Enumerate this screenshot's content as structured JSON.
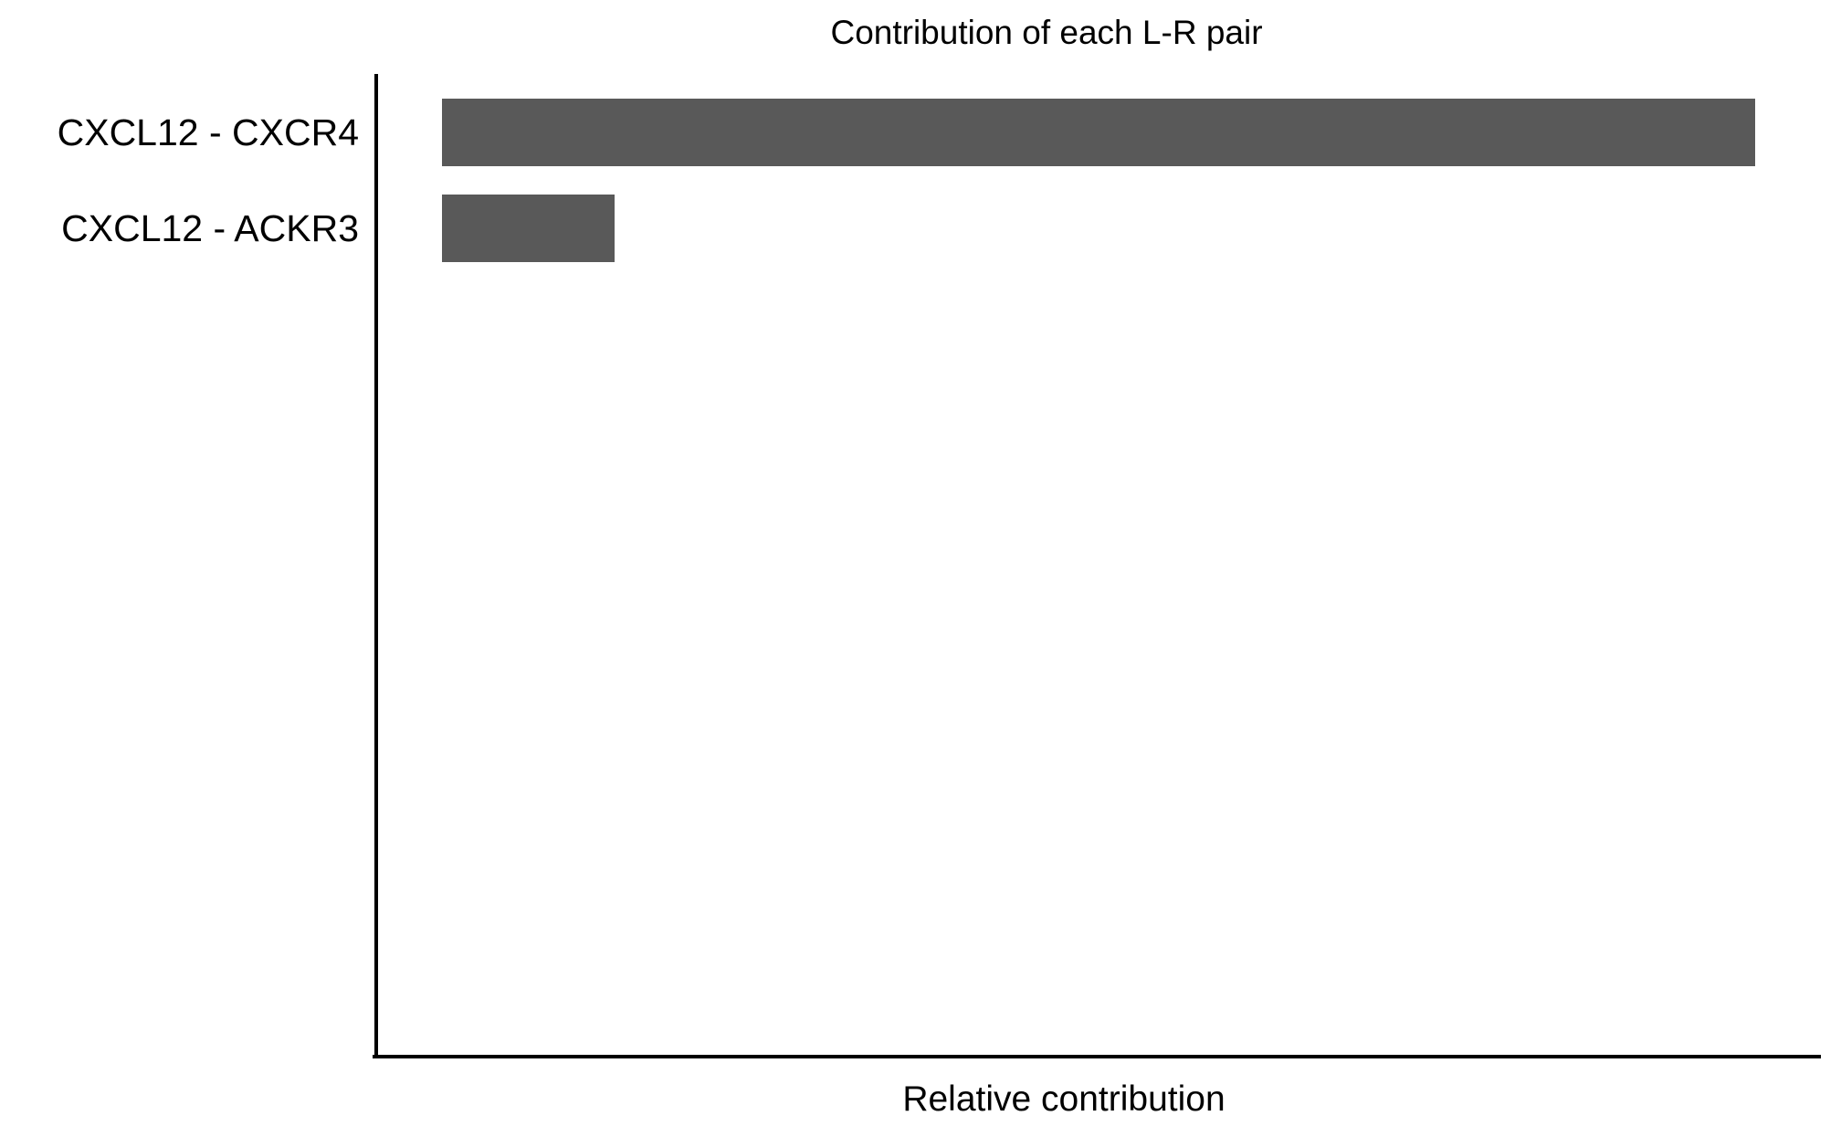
{
  "chart_data": {
    "type": "bar",
    "orientation": "horizontal",
    "title": "Contribution of each L-R pair",
    "xlabel": "Relative contribution",
    "ylabel": "",
    "categories": [
      "CXCL12 - CXCR4",
      "CXCL12 - ACKR3"
    ],
    "values": [
      0.884,
      0.116
    ],
    "xlim": [
      0,
      0.93
    ],
    "grid": false,
    "legend": false,
    "ticks_visible": false,
    "bar_color": "#595959",
    "axis_color": "#000000",
    "text_color": "#000000",
    "background_color": "#ffffff"
  }
}
